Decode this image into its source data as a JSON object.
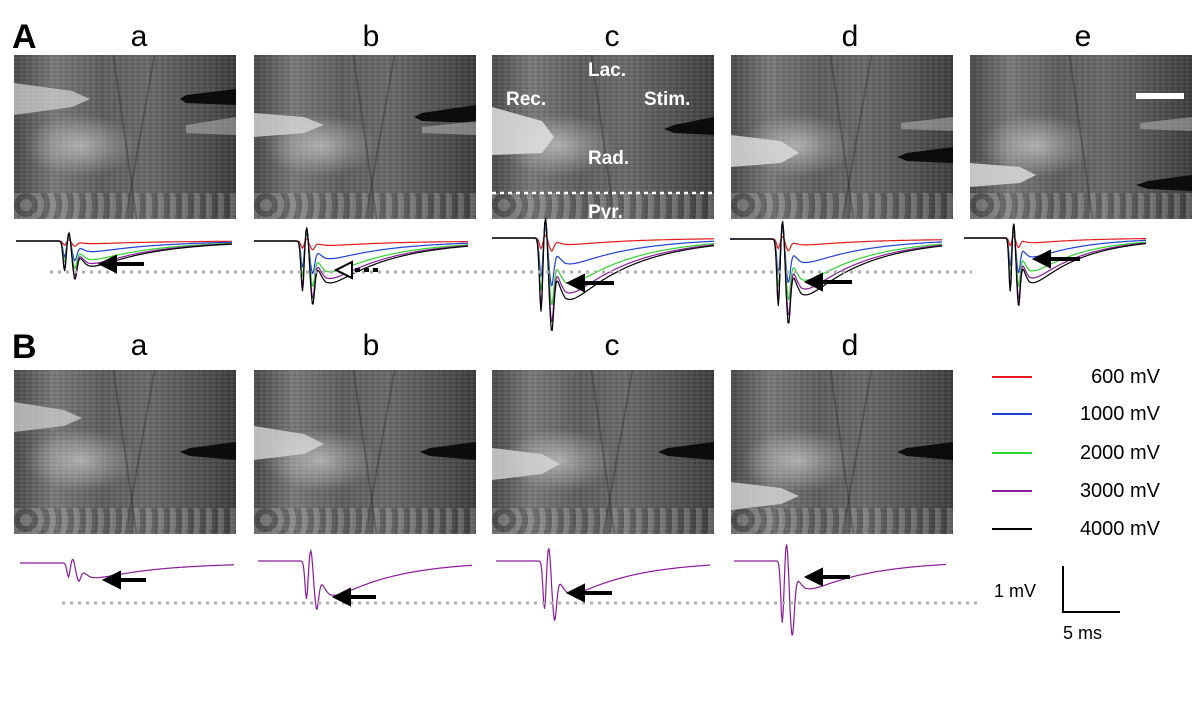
{
  "panels": {
    "A": {
      "letter": "A",
      "columns": [
        "a",
        "b",
        "c",
        "d",
        "e"
      ],
      "layer_labels": {
        "lac": "Lac.",
        "rec": "Rec.",
        "stim": "Stim.",
        "rad": "Rad.",
        "pyr": "Pyr."
      }
    },
    "B": {
      "letter": "B",
      "columns": [
        "a",
        "b",
        "c",
        "d"
      ]
    }
  },
  "legend": [
    {
      "label": "600 mV",
      "color": "#e41a1c"
    },
    {
      "label": "1000 mV",
      "color": "#1f3fd9"
    },
    {
      "label": "2000 mV",
      "color": "#2fd52f"
    },
    {
      "label": "3000 mV",
      "color": "#8a1a9b"
    },
    {
      "label": "4000 mV",
      "color": "#000000"
    }
  ],
  "scale_bar": {
    "voltage": "1 mV",
    "time": "5 ms"
  },
  "reference_line_color": "#b0b0b0",
  "arrow_color": "#000000"
}
